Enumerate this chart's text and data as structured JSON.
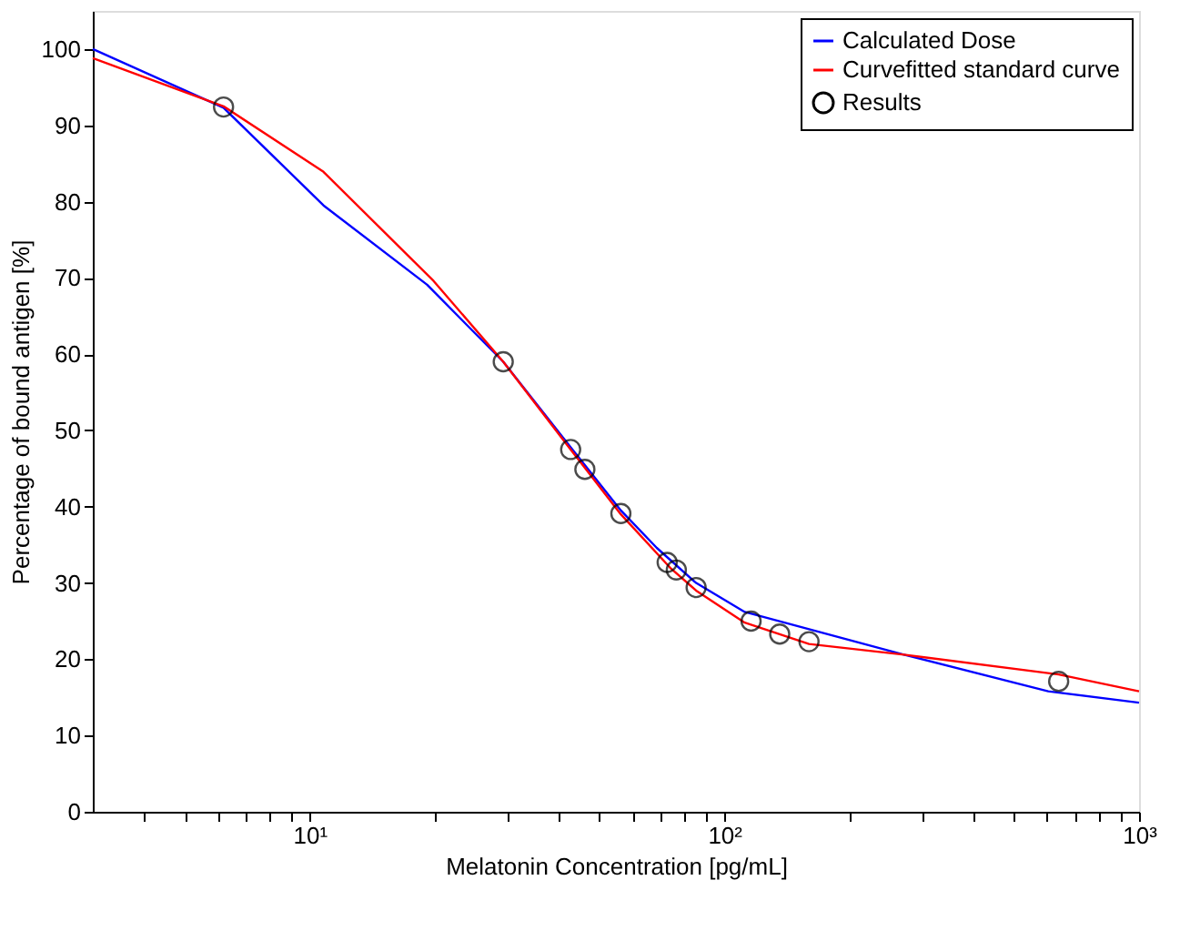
{
  "chart_data": {
    "type": "line",
    "xlabel": "Melatonin Concentration [pg/mL]",
    "ylabel": "Percentage of bound antigen [%]",
    "log": "x",
    "xlim": [
      3,
      1000
    ],
    "ylim": [
      0,
      105
    ],
    "xticks": [
      {
        "value": 4,
        "label": null
      },
      {
        "value": 5,
        "label": null
      },
      {
        "value": 6,
        "label": null
      },
      {
        "value": 7,
        "label": null
      },
      {
        "value": 8,
        "label": null
      },
      {
        "value": 9,
        "label": null
      },
      {
        "value": 10,
        "label": "10¹"
      },
      {
        "value": 20,
        "label": null
      },
      {
        "value": 30,
        "label": null
      },
      {
        "value": 40,
        "label": null
      },
      {
        "value": 50,
        "label": null
      },
      {
        "value": 60,
        "label": null
      },
      {
        "value": 70,
        "label": null
      },
      {
        "value": 80,
        "label": null
      },
      {
        "value": 90,
        "label": null
      },
      {
        "value": 100,
        "label": "10²"
      },
      {
        "value": 200,
        "label": null
      },
      {
        "value": 300,
        "label": null
      },
      {
        "value": 400,
        "label": null
      },
      {
        "value": 500,
        "label": null
      },
      {
        "value": 600,
        "label": null
      },
      {
        "value": 700,
        "label": null
      },
      {
        "value": 800,
        "label": null
      },
      {
        "value": 900,
        "label": null
      },
      {
        "value": 1000,
        "label": "10³"
      }
    ],
    "yticks": [
      0,
      10,
      20,
      30,
      40,
      50,
      60,
      70,
      80,
      90,
      100
    ],
    "grid": false,
    "legend": "top right",
    "series": [
      {
        "name": "Calculated Dose",
        "color": "#0000ff",
        "marker": "none",
        "line_style": "solid",
        "x": [
          3,
          6.2,
          10.8,
          19.2,
          29.3,
          42.6,
          56.3,
          68.7,
          85.5,
          112,
          271,
          604,
          1000
        ],
        "values": [
          100,
          92.3,
          79.5,
          69.1,
          59,
          47.8,
          39.5,
          34.6,
          30,
          26.2,
          20.6,
          15.8,
          14.3
        ]
      },
      {
        "name": "Curvefitted standard curve",
        "color": "#ff0000",
        "marker": "none",
        "line_style": "solid",
        "x": [
          3,
          6.2,
          10.8,
          19.9,
          29.3,
          42.6,
          56.3,
          74,
          85.5,
          112,
          160,
          271,
          640,
          1000
        ],
        "values": [
          98.8,
          92.5,
          83.9,
          69.6,
          59,
          47.5,
          39,
          32,
          29,
          24.8,
          22,
          20.6,
          18,
          15.8
        ]
      },
      {
        "name": "Results",
        "type": "scatter",
        "color": "#000000",
        "marker": "circle",
        "x": [
          6.2,
          29.3,
          42.6,
          46.1,
          56.3,
          72.8,
          76.6,
          85.5,
          116,
          136,
          160,
          640
        ],
        "values": [
          92.4,
          59,
          47.5,
          44.9,
          39.1,
          32.7,
          31.7,
          29.4,
          25,
          23.3,
          22.3,
          17.1
        ]
      }
    ]
  }
}
